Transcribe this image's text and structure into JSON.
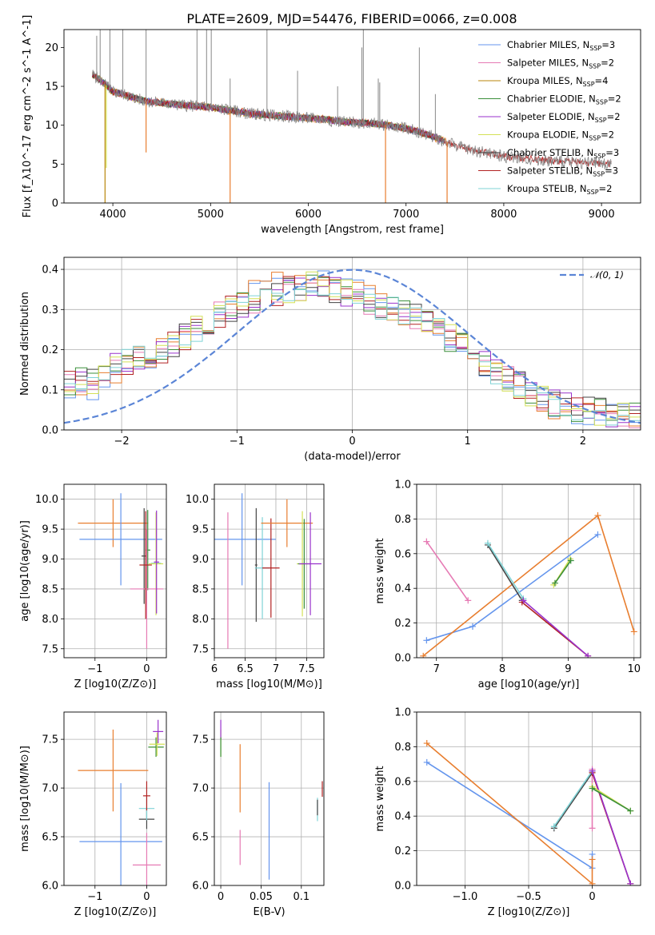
{
  "title": "PLATE=2609, MJD=54476, FIBERID=0066, z=0.008",
  "series": [
    {
      "name": "Chabrier MILES",
      "nssp": "3",
      "color": "#6495ed"
    },
    {
      "name": "Salpeter MILES",
      "nssp": "2",
      "color": "#e67ab4"
    },
    {
      "name": "Kroupa MILES",
      "nssp": "4",
      "color": "#b8860b"
    },
    {
      "name": "Chabrier ELODIE",
      "nssp": "2",
      "color": "#3b8f3b"
    },
    {
      "name": "Salpeter ELODIE",
      "nssp": "2",
      "color": "#9932cc"
    },
    {
      "name": "Kroupa ELODIE",
      "nssp": "2",
      "color": "#d4e157"
    },
    {
      "name": "Chabrier STELIB",
      "nssp": "3",
      "color": "#444444"
    },
    {
      "name": "Salpeter STELIB",
      "nssp": "3",
      "color": "#b22222"
    },
    {
      "name": "Kroupa STELIB",
      "nssp": "2",
      "color": "#7fd3d6"
    }
  ],
  "chart_data": [
    {
      "id": "spectrum",
      "type": "line",
      "xlabel": "wavelength [Angstrom, rest frame]",
      "ylabel": "Flux [f_λ10^-17 erg cm^-2 s^-1 A^-1]",
      "xlim": [
        3500,
        9400
      ],
      "ylim": [
        0,
        22.3
      ],
      "xticks": [
        4000,
        5000,
        6000,
        7000,
        8000,
        9000
      ],
      "yticks": [
        0,
        5,
        10,
        15,
        20
      ],
      "data_color": "#888888",
      "model_color": "#e87e2f",
      "x": [
        3800,
        3900,
        4000,
        4100,
        4200,
        4300,
        4400,
        4500,
        4600,
        4800,
        5000,
        5200,
        5400,
        5600,
        5800,
        6000,
        6200,
        6400,
        6600,
        6800,
        7000,
        7200,
        7400,
        7600,
        8000,
        8400,
        8800,
        9100
      ],
      "y": [
        16.5,
        15.5,
        14.3,
        14.0,
        13.6,
        13.2,
        13.0,
        12.9,
        12.7,
        12.5,
        12.3,
        11.9,
        11.5,
        11.3,
        11.1,
        10.9,
        10.7,
        10.4,
        10.3,
        10.0,
        9.6,
        8.9,
        7.9,
        7.0,
        6.0,
        5.5,
        5.2,
        5.0
      ],
      "emission_lines": [
        {
          "x": 3835,
          "y": 21.5
        },
        {
          "x": 3870,
          "y": 22.3
        },
        {
          "x": 3970,
          "y": 22.3
        },
        {
          "x": 4102,
          "y": 22.3
        },
        {
          "x": 4340,
          "y": 22.3
        },
        {
          "x": 4861,
          "y": 22.3
        },
        {
          "x": 4959,
          "y": 22.3
        },
        {
          "x": 5007,
          "y": 22.3
        },
        {
          "x": 5200,
          "y": 16.0
        },
        {
          "x": 5577,
          "y": 22.3
        },
        {
          "x": 5890,
          "y": 17.0
        },
        {
          "x": 6300,
          "y": 15.0
        },
        {
          "x": 6548,
          "y": 20.0
        },
        {
          "x": 6563,
          "y": 22.3
        },
        {
          "x": 6716,
          "y": 16.0
        },
        {
          "x": 6731,
          "y": 15.5
        },
        {
          "x": 7136,
          "y": 20.0
        },
        {
          "x": 7300,
          "y": 14.0
        }
      ],
      "absorption_dips": [
        {
          "x": 3920,
          "y": 0
        },
        {
          "x": 3933,
          "y": 4.5
        },
        {
          "x": 4340,
          "y": 6.5
        },
        {
          "x": 5200,
          "y": 0
        },
        {
          "x": 6790,
          "y": 0
        },
        {
          "x": 7420,
          "y": 0
        }
      ]
    },
    {
      "id": "residual-histogram",
      "type": "line",
      "xlabel": "(data-model)/error",
      "ylabel": "Normed distribution",
      "xlim": [
        -2.5,
        2.5
      ],
      "ylim": [
        0,
        0.43
      ],
      "xticks": [
        -2,
        -1,
        0,
        1,
        2
      ],
      "yticks": [
        0.0,
        0.1,
        0.2,
        0.3,
        0.4
      ],
      "legend": "𝒩(0, 1)",
      "gauss_color": "#5b85d6",
      "bin_width": 0.1,
      "bins_start": -2.5,
      "base": [
        0.12,
        0.13,
        0.12,
        0.14,
        0.16,
        0.17,
        0.18,
        0.19,
        0.2,
        0.21,
        0.23,
        0.25,
        0.27,
        0.29,
        0.3,
        0.31,
        0.32,
        0.33,
        0.34,
        0.35,
        0.35,
        0.36,
        0.36,
        0.35,
        0.34,
        0.33,
        0.32,
        0.31,
        0.3,
        0.29,
        0.28,
        0.27,
        0.25,
        0.23,
        0.21,
        0.19,
        0.17,
        0.15,
        0.13,
        0.11,
        0.09,
        0.08,
        0.07,
        0.06,
        0.05,
        0.05,
        0.045,
        0.04,
        0.04,
        0.035
      ]
    },
    {
      "id": "age-vs-z",
      "type": "scatter",
      "xlabel": "Z [log10(Z/Z⊙)]",
      "ylabel": "age [log10(age/yr)]",
      "xlim": [
        -1.6,
        0.38
      ],
      "ylim": [
        7.35,
        10.25
      ],
      "xticks": [
        -1,
        0
      ],
      "yticks": [
        7.5,
        8.0,
        8.5,
        9.0,
        9.5,
        10.0
      ],
      "points": [
        {
          "s": 2,
          "x": -0.65,
          "xerr": 0.68,
          "y": 9.6,
          "yerr": 0.4
        },
        {
          "s": 0,
          "x": -0.5,
          "xerr": 0.8,
          "y": 9.33,
          "yerr": 0.77
        },
        {
          "s": 6,
          "x": -0.05,
          "xerr": 0.05,
          "y": 9.05,
          "yerr": 0.8
        },
        {
          "s": 3,
          "x": 0.02,
          "xerr": 0.05,
          "y": 9.15,
          "yerr": 0.67
        },
        {
          "s": 8,
          "x": 0.18,
          "xerr": 0.1,
          "y": 8.93,
          "yerr": 0.85
        },
        {
          "s": 5,
          "x": 0.18,
          "xerr": 0.14,
          "y": 8.92,
          "yerr": 0.86
        },
        {
          "s": 1,
          "x": 0.0,
          "xerr": 0.32,
          "y": 8.5,
          "yerr": 1.0
        },
        {
          "s": 7,
          "x": -0.02,
          "xerr": 0.12,
          "y": 8.9,
          "yerr": 0.9
        },
        {
          "s": 4,
          "x": 0.19,
          "xerr": 0.05,
          "y": 8.95,
          "yerr": 0.86
        }
      ]
    },
    {
      "id": "age-vs-mass",
      "type": "scatter",
      "xlabel": "mass [log10(M/M⊙)]",
      "ylabel": "",
      "xlim": [
        6.0,
        7.78
      ],
      "ylim": [
        7.35,
        10.25
      ],
      "xticks": [
        6.0,
        6.5,
        7.0,
        7.5
      ],
      "yticks": [
        7.5,
        8.0,
        8.5,
        9.0,
        9.5,
        10.0
      ],
      "points": [
        {
          "s": 0,
          "x": 6.45,
          "xerr": 0.55,
          "y": 9.33,
          "yerr": 0.77
        },
        {
          "s": 1,
          "x": 6.22,
          "xerr": 0.0,
          "y": 8.64,
          "yerr": 1.14
        },
        {
          "s": 6,
          "x": 6.68,
          "xerr": 0.02,
          "y": 8.9,
          "yerr": 0.95
        },
        {
          "s": 8,
          "x": 6.78,
          "xerr": 0.12,
          "y": 8.85,
          "yerr": 0.85
        },
        {
          "s": 7,
          "x": 6.92,
          "xerr": 0.14,
          "y": 8.85,
          "yerr": 0.83
        },
        {
          "s": 2,
          "x": 7.18,
          "xerr": 0.42,
          "y": 9.6,
          "yerr": 0.4
        },
        {
          "s": 5,
          "x": 7.43,
          "xerr": 0.09,
          "y": 8.92,
          "yerr": 0.88
        },
        {
          "s": 3,
          "x": 7.46,
          "xerr": 0.1,
          "y": 8.92,
          "yerr": 0.75
        },
        {
          "s": 4,
          "x": 7.56,
          "xerr": 0.18,
          "y": 8.92,
          "yerr": 0.86
        }
      ]
    },
    {
      "id": "mass-weight-vs-age",
      "type": "line",
      "xlabel": "age [log10(age/yr)]",
      "ylabel": "mass weight",
      "xlim": [
        6.7,
        10.1
      ],
      "ylim": [
        0,
        1.0
      ],
      "xticks": [
        7,
        8,
        9,
        10
      ],
      "yticks": [
        0.0,
        0.2,
        0.4,
        0.6,
        0.8,
        1.0
      ],
      "lines": [
        {
          "s": 0,
          "x": [
            6.85,
            7.55,
            9.45
          ],
          "y": [
            0.1,
            0.18,
            0.71
          ]
        },
        {
          "s": 2,
          "x": [
            6.8,
            9.45,
            10.0
          ],
          "y": [
            0.01,
            0.82,
            0.15
          ]
        },
        {
          "s": 1,
          "x": [
            6.85,
            7.48
          ],
          "y": [
            0.67,
            0.33
          ]
        },
        {
          "s": 6,
          "x": [
            7.78,
            8.3
          ],
          "y": [
            0.65,
            0.33
          ]
        },
        {
          "s": 8,
          "x": [
            7.78,
            8.32
          ],
          "y": [
            0.66,
            0.34
          ]
        },
        {
          "s": 7,
          "x": [
            8.3,
            9.3
          ],
          "y": [
            0.32,
            0.01
          ]
        },
        {
          "s": 4,
          "x": [
            8.32,
            9.3
          ],
          "y": [
            0.33,
            0.01
          ]
        },
        {
          "s": 5,
          "x": [
            8.78,
            9.03
          ],
          "y": [
            0.42,
            0.57
          ]
        },
        {
          "s": 3,
          "x": [
            8.8,
            9.04
          ],
          "y": [
            0.43,
            0.56
          ]
        }
      ]
    },
    {
      "id": "mass-vs-z",
      "type": "scatter",
      "xlabel": "Z [log10(Z/Z⊙)]",
      "ylabel": "mass [log10(M/M⊙)]",
      "xlim": [
        -1.6,
        0.38
      ],
      "ylim": [
        6.0,
        7.78
      ],
      "xticks": [
        -1,
        0
      ],
      "yticks": [
        6.0,
        6.5,
        7.0,
        7.5
      ],
      "points": [
        {
          "s": 2,
          "x": -0.65,
          "xerr": 0.68,
          "y": 7.18,
          "yerr": 0.42
        },
        {
          "s": 0,
          "x": -0.5,
          "xerr": 0.8,
          "y": 6.45,
          "yerr": 0.6
        },
        {
          "s": 1,
          "x": 0.0,
          "xerr": 0.27,
          "y": 6.21,
          "yerr": 0.33
        },
        {
          "s": 6,
          "x": 0.0,
          "xerr": 0.15,
          "y": 6.68,
          "yerr": 0.1
        },
        {
          "s": 8,
          "x": 0.0,
          "xerr": 0.15,
          "y": 6.79,
          "yerr": 0.12
        },
        {
          "s": 7,
          "x": 0.0,
          "xerr": 0.07,
          "y": 6.92,
          "yerr": 0.15
        },
        {
          "s": 4,
          "x": 0.22,
          "xerr": 0.1,
          "y": 7.58,
          "yerr": 0.12
        },
        {
          "s": 3,
          "x": 0.18,
          "xerr": 0.15,
          "y": 7.42,
          "yerr": 0.1
        },
        {
          "s": 5,
          "x": 0.2,
          "xerr": 0.15,
          "y": 7.45,
          "yerr": 0.12
        }
      ]
    },
    {
      "id": "mass-vs-ebv",
      "type": "scatter",
      "xlabel": "E(B-V)",
      "ylabel": "",
      "xlim": [
        -0.008,
        0.128
      ],
      "ylim": [
        6.0,
        7.78
      ],
      "xticks": [
        0.0,
        0.05,
        0.1
      ],
      "yticks": [
        6.0,
        6.5,
        7.0,
        7.5
      ],
      "points": [
        {
          "s": 2,
          "x": 0.024,
          "xerr": 0,
          "y": 7.1,
          "yerr": 0.35
        },
        {
          "s": 1,
          "x": 0.024,
          "xerr": 0,
          "y": 6.39,
          "yerr": 0.18
        },
        {
          "s": 0,
          "x": 0.06,
          "xerr": 0,
          "y": 6.56,
          "yerr": 0.5
        },
        {
          "s": 5,
          "x": 0.0,
          "xerr": 0,
          "y": 7.46,
          "yerr": 0.14
        },
        {
          "s": 4,
          "x": 0.0,
          "xerr": 0,
          "y": 7.6,
          "yerr": 0.1
        },
        {
          "s": 3,
          "x": 0.0,
          "xerr": 0,
          "y": 7.42,
          "yerr": 0.1
        },
        {
          "s": 8,
          "x": 0.12,
          "xerr": 0,
          "y": 6.78,
          "yerr": 0.12
        },
        {
          "s": 6,
          "x": 0.12,
          "xerr": 0,
          "y": 6.8,
          "yerr": 0.08
        },
        {
          "s": 7,
          "x": 0.126,
          "xerr": 0,
          "y": 6.99,
          "yerr": 0.08
        }
      ]
    },
    {
      "id": "mass-weight-vs-z",
      "type": "line",
      "xlabel": "Z [log10(Z/Z⊙)]",
      "ylabel": "mass weight",
      "xlim": [
        -1.38,
        0.38
      ],
      "ylim": [
        0,
        1.0
      ],
      "xticks": [
        -1.0,
        -0.5,
        0.0
      ],
      "yticks": [
        0.0,
        0.2,
        0.4,
        0.6,
        0.8,
        1.0
      ],
      "lines": [
        {
          "s": 0,
          "x": [
            -1.3,
            0.0,
            0.0
          ],
          "y": [
            0.71,
            0.1,
            0.18
          ]
        },
        {
          "s": 2,
          "x": [
            -1.3,
            0.0,
            0.0
          ],
          "y": [
            0.82,
            0.01,
            0.15
          ]
        },
        {
          "s": 1,
          "x": [
            0.0,
            0.0
          ],
          "y": [
            0.33,
            0.67
          ]
        },
        {
          "s": 6,
          "x": [
            -0.3,
            0.0
          ],
          "y": [
            0.33,
            0.65
          ]
        },
        {
          "s": 8,
          "x": [
            -0.3,
            0.0
          ],
          "y": [
            0.34,
            0.66
          ]
        },
        {
          "s": 7,
          "x": [
            0.0,
            0.3
          ],
          "y": [
            0.65,
            0.01
          ]
        },
        {
          "s": 4,
          "x": [
            0.0,
            0.3
          ],
          "y": [
            0.66,
            0.01
          ]
        },
        {
          "s": 5,
          "x": [
            0.0,
            0.3
          ],
          "y": [
            0.57,
            0.43
          ]
        },
        {
          "s": 3,
          "x": [
            0.0,
            0.3
          ],
          "y": [
            0.56,
            0.43
          ]
        }
      ]
    }
  ]
}
